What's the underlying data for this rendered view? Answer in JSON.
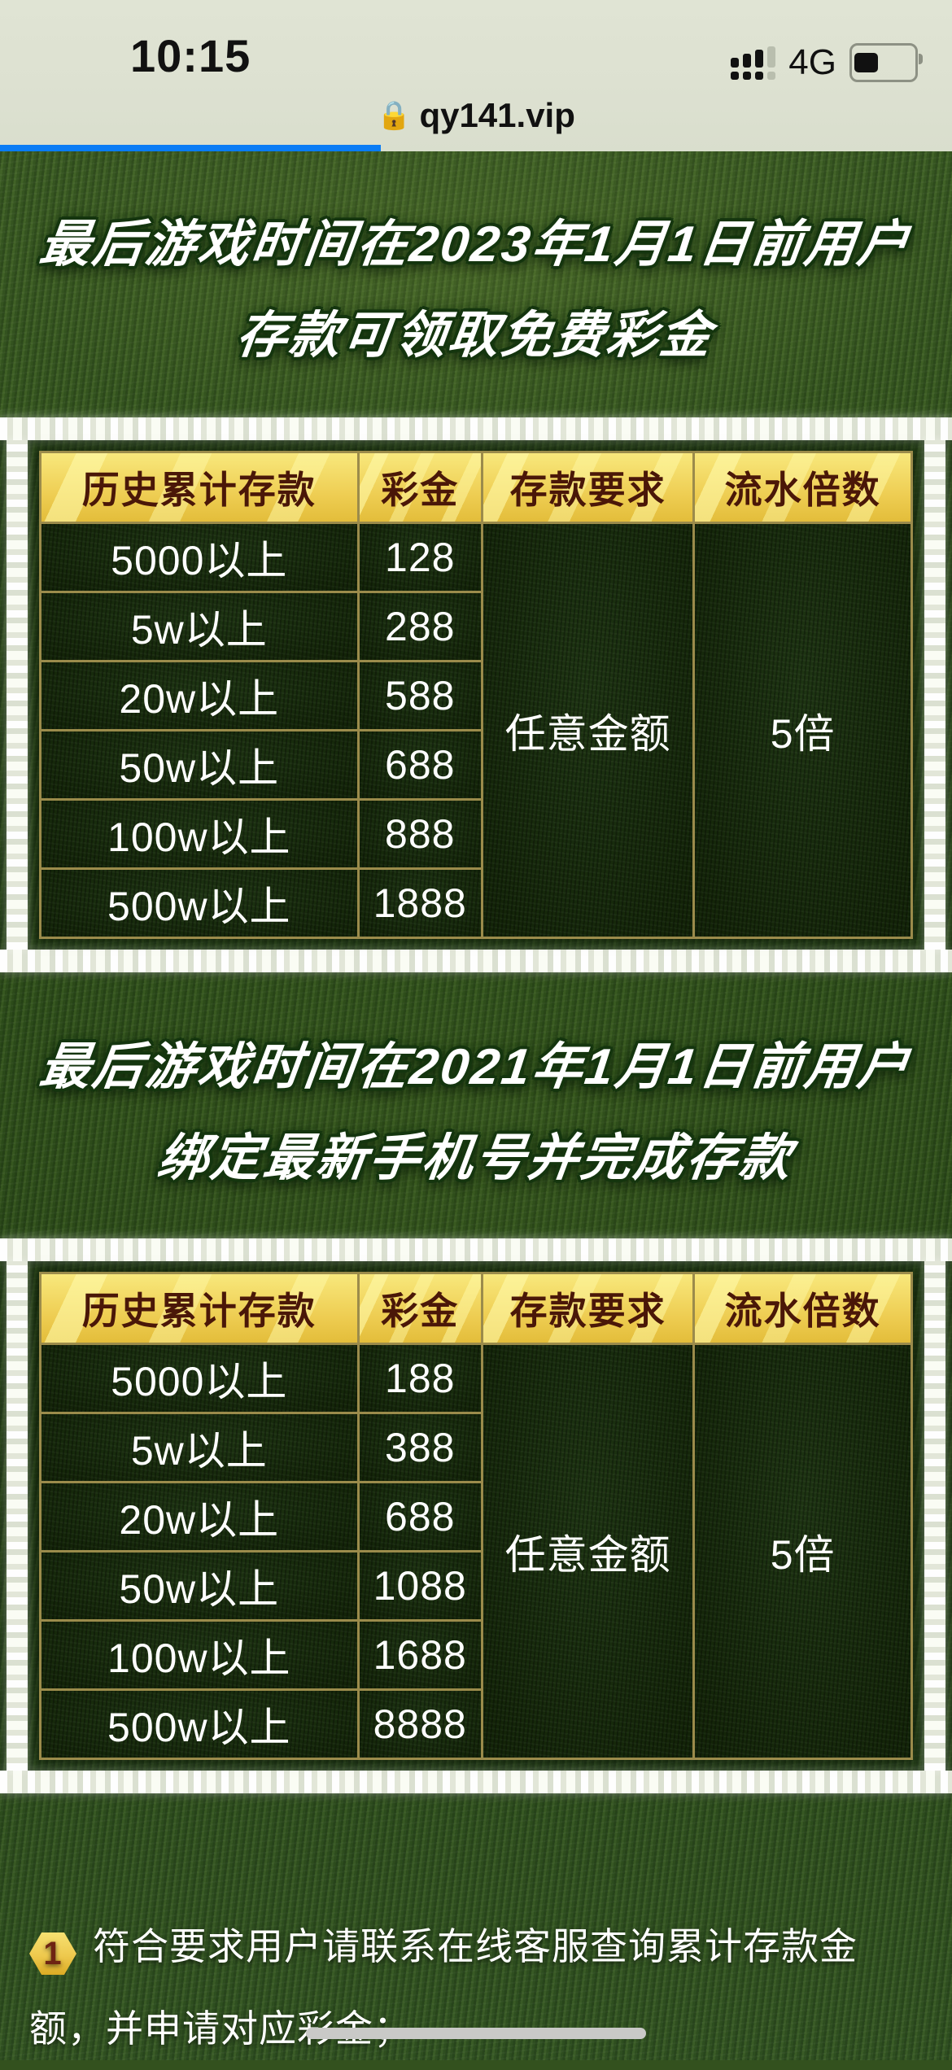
{
  "status_bar": {
    "time": "10:15",
    "network": "4G",
    "signal_icon": "dual-sim-signal-3-of-4",
    "battery_icon": "battery-40-percent"
  },
  "browser": {
    "lock_icon": "lock",
    "url": "qy141.vip"
  },
  "sections": [
    {
      "title_lines": [
        "最后游戏时间在2023年1月1日前用户",
        "存款可领取免费彩金"
      ]
    },
    {
      "title_lines": [
        "最后游戏时间在2021年1月1日前用户",
        "绑定最新手机号并完成存款"
      ]
    }
  ],
  "tables": [
    {
      "headers": [
        "历史累计存款",
        "彩金",
        "存款要求",
        "流水倍数"
      ],
      "rows": [
        {
          "deposit": "5000以上",
          "bonus": "128"
        },
        {
          "deposit": "5w以上",
          "bonus": "288"
        },
        {
          "deposit": "20w以上",
          "bonus": "588"
        },
        {
          "deposit": "50w以上",
          "bonus": "688"
        },
        {
          "deposit": "100w以上",
          "bonus": "888"
        },
        {
          "deposit": "500w以上",
          "bonus": "1888"
        }
      ],
      "requirement": "任意金额",
      "turnover": "5倍"
    },
    {
      "headers": [
        "历史累计存款",
        "彩金",
        "存款要求",
        "流水倍数"
      ],
      "rows": [
        {
          "deposit": "5000以上",
          "bonus": "188"
        },
        {
          "deposit": "5w以上",
          "bonus": "388"
        },
        {
          "deposit": "20w以上",
          "bonus": "688"
        },
        {
          "deposit": "50w以上",
          "bonus": "1088"
        },
        {
          "deposit": "100w以上",
          "bonus": "1688"
        },
        {
          "deposit": "500w以上",
          "bonus": "8888"
        }
      ],
      "requirement": "任意金额",
      "turnover": "5倍"
    }
  ],
  "footnote": {
    "badge": "1",
    "text": "符合要求用户请联系在线客服查询累计存款金额，并申请对应彩金；"
  },
  "colors": {
    "progress_blue": "#0a7cf5",
    "chalk_white": "#edefe4",
    "gold_header_light": "#f8e87c",
    "gold_header_dark": "#e3bd3a",
    "table_border_gold": "#9b8b4b",
    "header_text_brown": "#4a1708",
    "badge_text_red": "#6e2413",
    "grass_green": "#33511e",
    "safari_bar": "#dde1d1"
  }
}
